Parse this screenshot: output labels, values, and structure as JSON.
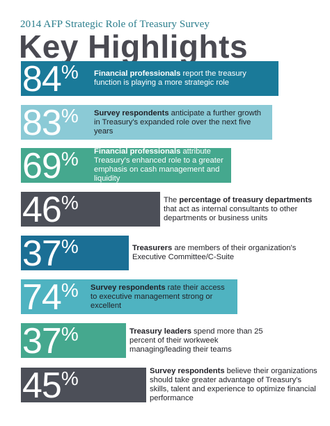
{
  "header": {
    "subtitle": "2014 AFP Strategic Role of Treasury Survey",
    "title": "Key Highlights"
  },
  "colors": {
    "blue": "#1a7a99",
    "light_teal": "#8bcad6",
    "green": "#45a88e",
    "gray": "#4c4f58",
    "navy": "#1b6f95",
    "teal": "#4fb3c1"
  },
  "stats": [
    {
      "pct": "84",
      "symbol": "%",
      "bold": "Financial professionals",
      "text": " report the treasury function is playing a more strategic role"
    },
    {
      "pct": "83",
      "symbol": "%",
      "bold": "Survey respondents",
      "text": " anticipate a further growth in Treasury's expanded role over the next five years"
    },
    {
      "pct": "69",
      "symbol": "%",
      "bold": "Financial professionals",
      "text": " attribute Treasury's enhanced role to a greater emphasis on cash management and liquidity"
    },
    {
      "pct": "46",
      "symbol": "%",
      "pre": "The ",
      "bold": "percentage of treasury departments",
      "text": " that act as internal consultants to other departments or business units"
    },
    {
      "pct": "37",
      "symbol": "%",
      "bold": "Treasurers",
      "text": " are members of their organization's Executive Committee/C-Suite"
    },
    {
      "pct": "74",
      "symbol": "%",
      "bold": "Survey respondents",
      "text": " rate their access to executive management strong or excellent"
    },
    {
      "pct": "37",
      "symbol": "%",
      "bold": "Treasury leaders",
      "text": " spend more than 25 percent of their workweek managing/leading their teams"
    },
    {
      "pct": "45",
      "symbol": "%",
      "bold": "Survey respondents",
      "text": " believe their organizations should take greater advantage of Treasury's skills, talent and experience to optimize financial performance"
    }
  ]
}
